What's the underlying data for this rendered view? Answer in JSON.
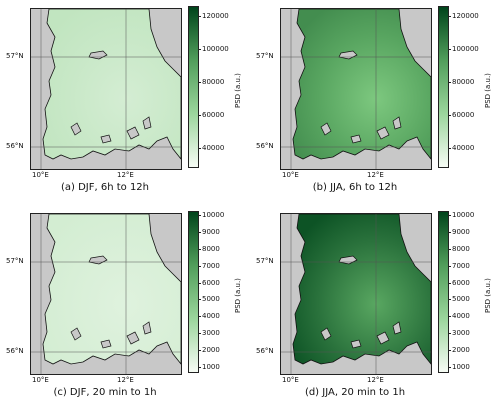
{
  "panels": [
    {
      "caption": "(a) DJF, 6h to 12h",
      "lat_labels": [
        "57°N",
        "56°N"
      ],
      "lon_labels": [
        "10°E",
        "12°E"
      ],
      "colorbar": {
        "label": "PSD (a.u.)",
        "ticks": [
          "120000",
          "100000",
          "80000",
          "60000",
          "40000"
        ]
      },
      "intensity": 0.18
    },
    {
      "caption": "(b) JJA, 6h to 12h",
      "lat_labels": [
        "57°N",
        "56°N"
      ],
      "lon_labels": [
        "10°E",
        "12°E"
      ],
      "colorbar": {
        "label": "PSD (a.u.)",
        "ticks": [
          "120000",
          "100000",
          "80000",
          "60000",
          "40000"
        ]
      },
      "intensity": 0.62
    },
    {
      "caption": "(c) DJF, 20 min to 1h",
      "lat_labels": [
        "57°N",
        "56°N"
      ],
      "lon_labels": [
        "10°E",
        "12°E"
      ],
      "colorbar": {
        "label": "PSD (a.u.)",
        "ticks": [
          "10000",
          "9000",
          "8000",
          "7000",
          "6000",
          "5000",
          "4000",
          "3000",
          "2000",
          "1000"
        ]
      },
      "intensity": 0.12
    },
    {
      "caption": "(d) JJA, 20 min to 1h",
      "lat_labels": [
        "57°N",
        "56°N"
      ],
      "lon_labels": [
        "10°E",
        "12°E"
      ],
      "colorbar": {
        "label": "PSD (a.u.)",
        "ticks": [
          "10000",
          "9000",
          "8000",
          "7000",
          "6000",
          "5000",
          "4000",
          "3000",
          "2000",
          "1000"
        ]
      },
      "intensity": 0.82
    }
  ],
  "colors": {
    "land": "#c8c8c8",
    "cmap_low": "#f7fcf5",
    "cmap_high": "#00441b",
    "coast": "#111111"
  }
}
